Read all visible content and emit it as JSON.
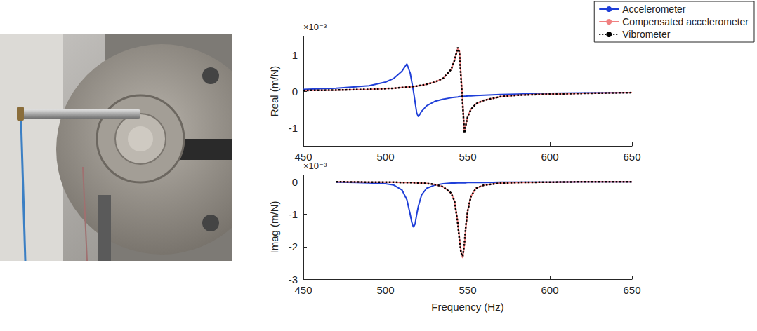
{
  "chart_data": [
    {
      "type": "line",
      "ylabel": "Real (m/N)",
      "y_scale_label": "×10⁻³",
      "xlim": [
        450,
        650
      ],
      "xticks": [
        450,
        500,
        550,
        600,
        650
      ],
      "ylim": [
        -1.5,
        1.5
      ],
      "yticks": [
        -1,
        0,
        1
      ],
      "grid": false,
      "legend": "top-right",
      "x": [
        450,
        470,
        490,
        500,
        505,
        510,
        513,
        515,
        517,
        519,
        520,
        522,
        525,
        530,
        535,
        540,
        542,
        544,
        545,
        546,
        547,
        548,
        549,
        550,
        552,
        555,
        560,
        570,
        580,
        600,
        620,
        650
      ],
      "series": [
        {
          "name": "Accelerometer",
          "color": "#1f3fd8",
          "line_style": "solid",
          "values": [
            0.05,
            0.08,
            0.15,
            0.25,
            0.35,
            0.55,
            0.75,
            0.5,
            0,
            -0.6,
            -0.7,
            -0.55,
            -0.4,
            -0.28,
            -0.22,
            -0.18,
            -0.17,
            -0.16,
            -0.15,
            -0.15,
            -0.15,
            -0.14,
            -0.14,
            -0.13,
            -0.13,
            -0.12,
            -0.11,
            -0.09,
            -0.08,
            -0.06,
            -0.05,
            -0.04
          ]
        },
        {
          "name": "Compensated accelerometer",
          "color": "#f08080",
          "line_style": "solid",
          "values": [
            0.02,
            0.03,
            0.05,
            0.07,
            0.08,
            0.1,
            0.11,
            0.12,
            0.13,
            0.14,
            0.15,
            0.16,
            0.19,
            0.25,
            0.35,
            0.6,
            0.85,
            1.18,
            1.1,
            0.4,
            -0.3,
            -1.12,
            -0.9,
            -0.7,
            -0.5,
            -0.35,
            -0.25,
            -0.15,
            -0.11,
            -0.08,
            -0.06,
            -0.04
          ]
        },
        {
          "name": "Vibrometer",
          "color": "#000000",
          "line_style": "dotted",
          "values": [
            0.02,
            0.03,
            0.05,
            0.07,
            0.08,
            0.1,
            0.11,
            0.12,
            0.13,
            0.14,
            0.15,
            0.16,
            0.19,
            0.25,
            0.35,
            0.6,
            0.85,
            1.2,
            1.05,
            0.3,
            -0.4,
            -1.15,
            -0.9,
            -0.7,
            -0.5,
            -0.35,
            -0.25,
            -0.15,
            -0.11,
            -0.08,
            -0.06,
            -0.04
          ]
        }
      ]
    },
    {
      "type": "line",
      "ylabel": "Imag (m/N)",
      "xlabel": "Frequency (Hz)",
      "y_scale_label": "×10⁻³",
      "xlim": [
        450,
        650
      ],
      "xticks": [
        450,
        500,
        550,
        600,
        650
      ],
      "ylim": [
        -3,
        0.2
      ],
      "yticks": [
        -3,
        -2,
        -1,
        0
      ],
      "grid": false,
      "x": [
        470,
        490,
        500,
        505,
        510,
        513,
        515,
        516,
        517,
        518,
        519,
        520,
        522,
        525,
        530,
        535,
        540,
        542,
        544,
        545,
        546,
        547,
        548,
        549,
        550,
        552,
        555,
        560,
        570,
        580,
        600,
        620,
        650
      ],
      "series": [
        {
          "name": "Accelerometer",
          "color": "#1f3fd8",
          "line_style": "solid",
          "values": [
            -0.01,
            -0.03,
            -0.06,
            -0.1,
            -0.25,
            -0.55,
            -1.0,
            -1.25,
            -1.4,
            -1.3,
            -1.0,
            -0.75,
            -0.4,
            -0.2,
            -0.1,
            -0.06,
            -0.04,
            -0.04,
            -0.03,
            -0.03,
            -0.03,
            -0.03,
            -0.03,
            -0.03,
            -0.02,
            -0.02,
            -0.02,
            -0.02,
            -0.01,
            -0.01,
            -0.01,
            0,
            0
          ]
        },
        {
          "name": "Compensated accelerometer",
          "color": "#f08080",
          "line_style": "solid",
          "values": [
            0,
            -0.01,
            -0.01,
            -0.01,
            -0.02,
            -0.02,
            -0.02,
            -0.02,
            -0.02,
            -0.03,
            -0.03,
            -0.03,
            -0.04,
            -0.05,
            -0.08,
            -0.15,
            -0.35,
            -0.6,
            -1.25,
            -1.75,
            -2.15,
            -2.35,
            -1.95,
            -1.35,
            -0.9,
            -0.45,
            -0.2,
            -0.1,
            -0.04,
            -0.02,
            -0.01,
            0,
            0
          ]
        },
        {
          "name": "Vibrometer",
          "color": "#000000",
          "line_style": "dotted",
          "values": [
            0,
            -0.01,
            -0.01,
            -0.01,
            -0.02,
            -0.02,
            -0.02,
            -0.02,
            -0.02,
            -0.03,
            -0.03,
            -0.03,
            -0.04,
            -0.05,
            -0.08,
            -0.15,
            -0.35,
            -0.6,
            -1.3,
            -1.8,
            -2.2,
            -2.3,
            -1.9,
            -1.3,
            -0.9,
            -0.45,
            -0.2,
            -0.1,
            -0.04,
            -0.02,
            -0.01,
            0,
            0
          ]
        }
      ]
    }
  ]
}
